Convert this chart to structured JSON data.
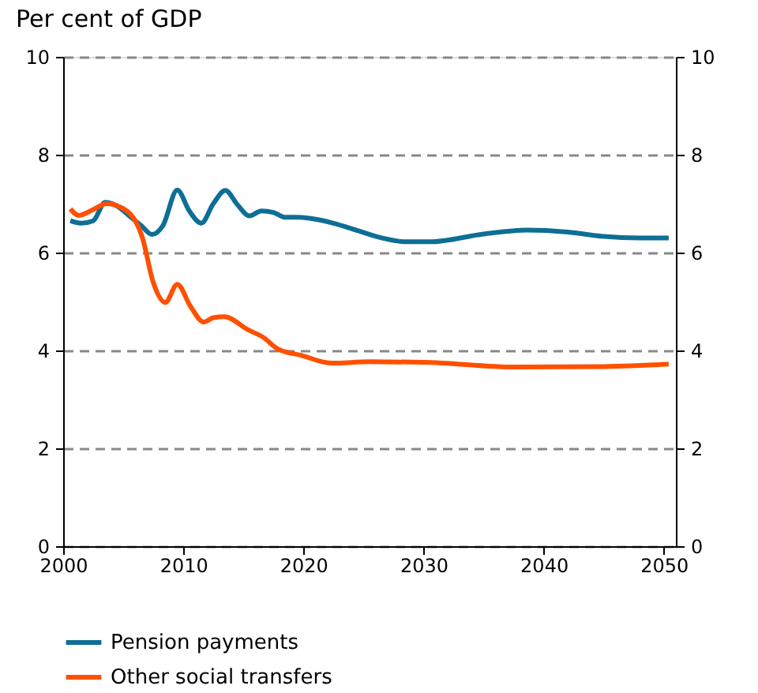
{
  "chart_data": {
    "type": "line",
    "title": "Per cent of GDP",
    "xlim": [
      2000,
      2051
    ],
    "xticks": [
      2000,
      2010,
      2020,
      2030,
      2040,
      2050
    ],
    "ylim": [
      0,
      10
    ],
    "yticks": [
      0,
      2,
      4,
      6,
      8,
      10
    ],
    "y2lim": [
      0,
      10
    ],
    "y2ticks": [
      0,
      2,
      4,
      6,
      8,
      10
    ],
    "grid": "y",
    "legend": "bottom",
    "line_style": "solid",
    "marker": "none",
    "series": [
      {
        "name": "Pension payments",
        "color": "#0e6e96",
        "x": [
          2000.6,
          2001.5,
          2002.5,
          2003.5,
          2004.5,
          2005.5,
          2006.5,
          2007.4,
          2008.3,
          2009.5,
          2010.5,
          2011.5,
          2012.5,
          2013.5,
          2014.5,
          2015.5,
          2016.5,
          2017.5,
          2018.5,
          2019.5,
          2020.5,
          2022.5,
          2024.5,
          2026.5,
          2028.5,
          2030.5,
          2035,
          2038.6,
          2042,
          2045,
          2048,
          2050.4
        ],
        "values": [
          6.65,
          6.6,
          6.65,
          7.03,
          6.95,
          6.75,
          6.55,
          6.37,
          6.55,
          7.28,
          6.85,
          6.6,
          7.0,
          7.27,
          6.98,
          6.75,
          6.85,
          6.82,
          6.72,
          6.72,
          6.7,
          6.6,
          6.45,
          6.3,
          6.22,
          6.22,
          6.38,
          6.46,
          6.42,
          6.33,
          6.3,
          6.3
        ]
      },
      {
        "name": "Other social transfers",
        "color": "#ff5000",
        "x": [
          2000.6,
          2001.3,
          2002.5,
          2003.6,
          2005.3,
          2006.6,
          2007.5,
          2008.5,
          2009.5,
          2010.6,
          2011.7,
          2012.5,
          2013.4,
          2015.4,
          2016.7,
          2017.8,
          2019.8,
          2022.4,
          2025.5,
          2030,
          2037.7,
          2045,
          2050.4
        ],
        "values": [
          6.89,
          6.76,
          6.88,
          7.0,
          6.85,
          6.3,
          5.39,
          4.98,
          5.35,
          4.9,
          4.58,
          4.67,
          4.69,
          4.42,
          4.26,
          4.04,
          3.9,
          3.74,
          3.77,
          3.76,
          3.66,
          3.67,
          3.72
        ]
      }
    ]
  }
}
